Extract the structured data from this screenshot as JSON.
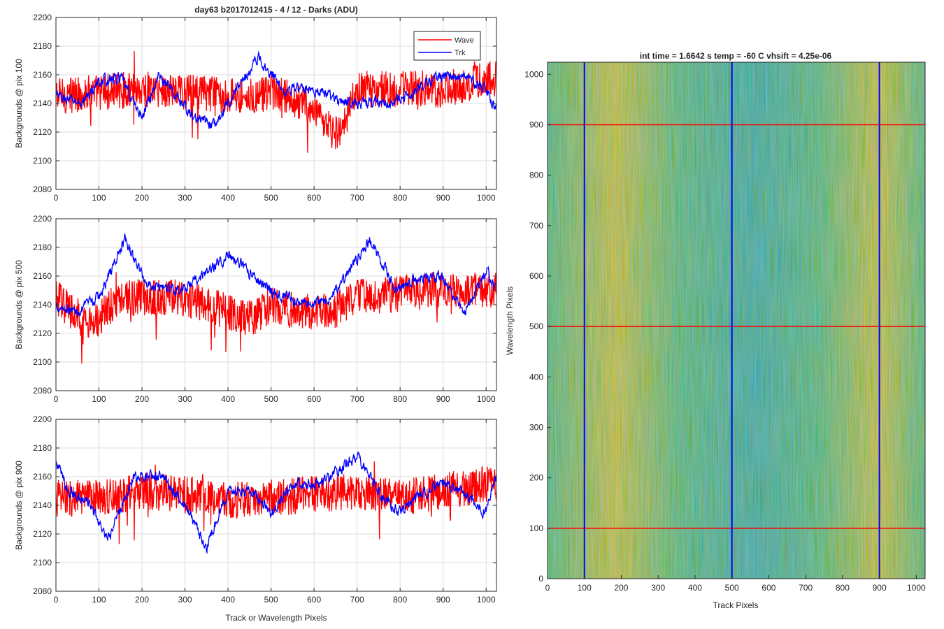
{
  "figure": {
    "title": "day63 b2017012415 - 4 / 12 - Darks (ADU)",
    "line_xlabel": "Track or Wavelength Pixels",
    "legend": [
      "Wave",
      "Trk"
    ],
    "colors": {
      "wave": "#ff0000",
      "trk": "#0000ff",
      "grid": "#dcdcdc",
      "axis": "#262626"
    }
  },
  "chart_data": [
    {
      "type": "line",
      "ylabel": "Backgrounds @ pix 100",
      "xlim": [
        0,
        1024
      ],
      "ylim": [
        2080,
        2200
      ],
      "xticks": [
        0,
        100,
        200,
        300,
        400,
        500,
        600,
        700,
        800,
        900,
        1000
      ],
      "yticks": [
        2080,
        2100,
        2120,
        2140,
        2160,
        2180,
        2200
      ],
      "grid": true,
      "legend_position": "top-right",
      "series": [
        {
          "name": "Wave",
          "color": "#ff0000",
          "mean": 2147,
          "noise": 13,
          "x": [
            0,
            100,
            200,
            300,
            400,
            470,
            500,
            580,
            620,
            660,
            700,
            800,
            900,
            1024
          ],
          "y": [
            2145,
            2148,
            2150,
            2148,
            2146,
            2145,
            2147,
            2140,
            2125,
            2118,
            2150,
            2150,
            2150,
            2158
          ]
        },
        {
          "name": "Trk",
          "color": "#0000ff",
          "mean": 2148,
          "noise": 4,
          "x": [
            0,
            60,
            100,
            150,
            200,
            240,
            320,
            370,
            420,
            470,
            530,
            600,
            660,
            720,
            800,
            850,
            900,
            950,
            1000,
            1024
          ],
          "y": [
            2145,
            2140,
            2155,
            2158,
            2130,
            2160,
            2130,
            2125,
            2150,
            2172,
            2150,
            2150,
            2142,
            2140,
            2142,
            2152,
            2160,
            2158,
            2150,
            2135
          ]
        }
      ]
    },
    {
      "type": "line",
      "ylabel": "Backgrounds @ pix 500",
      "xlim": [
        0,
        1024
      ],
      "ylim": [
        2080,
        2200
      ],
      "xticks": [
        0,
        100,
        200,
        300,
        400,
        500,
        600,
        700,
        800,
        900,
        1000
      ],
      "yticks": [
        2080,
        2100,
        2120,
        2140,
        2160,
        2180,
        2200
      ],
      "grid": true,
      "series": [
        {
          "name": "Wave",
          "color": "#ff0000",
          "mean": 2143,
          "noise": 13,
          "x": [
            0,
            80,
            150,
            300,
            450,
            500,
            560,
            640,
            700,
            800,
            900,
            1024
          ],
          "y": [
            2145,
            2125,
            2145,
            2145,
            2130,
            2140,
            2135,
            2135,
            2145,
            2148,
            2150,
            2150
          ]
        },
        {
          "name": "Trk",
          "color": "#0000ff",
          "mean": 2152,
          "noise": 4,
          "x": [
            0,
            50,
            100,
            160,
            210,
            300,
            400,
            460,
            500,
            570,
            640,
            730,
            790,
            850,
            900,
            950,
            1000,
            1024
          ],
          "y": [
            2140,
            2135,
            2145,
            2185,
            2155,
            2150,
            2175,
            2160,
            2150,
            2140,
            2145,
            2185,
            2150,
            2160,
            2158,
            2135,
            2165,
            2148
          ]
        }
      ]
    },
    {
      "type": "line",
      "ylabel": "Backgrounds @ pix 900",
      "xlim": [
        0,
        1024
      ],
      "ylim": [
        2080,
        2200
      ],
      "xticks": [
        0,
        100,
        200,
        300,
        400,
        500,
        600,
        700,
        800,
        900,
        1000
      ],
      "yticks": [
        2080,
        2100,
        2120,
        2140,
        2160,
        2180,
        2200
      ],
      "grid": true,
      "series": [
        {
          "name": "Wave",
          "color": "#ff0000",
          "mean": 2148,
          "noise": 13,
          "x": [
            0,
            100,
            200,
            300,
            400,
            500,
            600,
            700,
            800,
            900,
            1024
          ],
          "y": [
            2145,
            2145,
            2150,
            2148,
            2143,
            2145,
            2148,
            2150,
            2145,
            2150,
            2155
          ]
        },
        {
          "name": "Trk",
          "color": "#0000ff",
          "mean": 2150,
          "noise": 4,
          "x": [
            0,
            30,
            80,
            120,
            180,
            250,
            300,
            350,
            400,
            460,
            500,
            550,
            620,
            700,
            760,
            800,
            860,
            900,
            950,
            1000,
            1024
          ],
          "y": [
            2170,
            2150,
            2140,
            2115,
            2160,
            2160,
            2140,
            2110,
            2150,
            2150,
            2135,
            2155,
            2155,
            2175,
            2145,
            2135,
            2150,
            2155,
            2148,
            2135,
            2160
          ]
        }
      ]
    },
    {
      "type": "heatmap",
      "title": "int time = 1.6642 s    temp = -60 C    vhsift = 4.25e-06",
      "xlabel": "Track Pixels",
      "ylabel": "Wavelength Pixels",
      "xlim": [
        0,
        1024
      ],
      "ylim": [
        0,
        1024
      ],
      "xticks": [
        0,
        100,
        200,
        300,
        400,
        500,
        600,
        700,
        800,
        900,
        1000
      ],
      "yticks": [
        0,
        100,
        200,
        300,
        400,
        500,
        600,
        700,
        800,
        900,
        1000
      ],
      "colormap": "parula",
      "colors": {
        "low": "#1fa5b8",
        "mid": "#3db58e",
        "high": "#bcbd48"
      },
      "marker_rows": [
        100,
        500,
        900
      ],
      "marker_row_color": "#ff0000",
      "marker_cols": [
        100,
        500,
        900
      ],
      "marker_col_color": "#0000ff"
    }
  ]
}
